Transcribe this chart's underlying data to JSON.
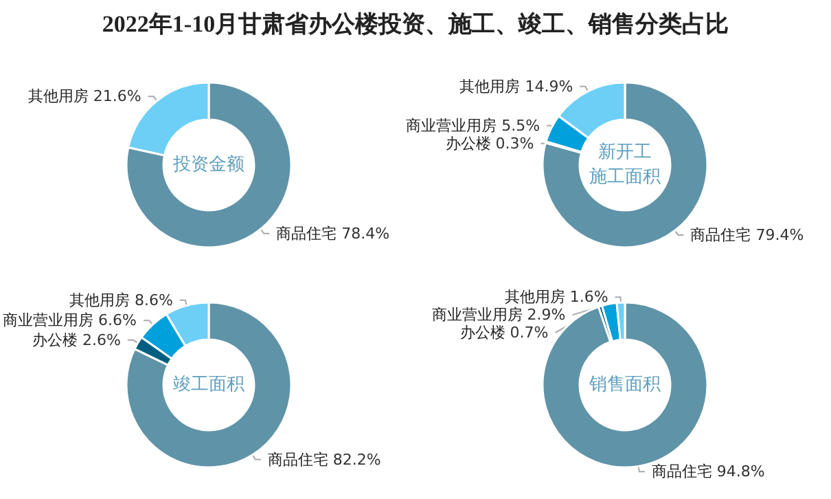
{
  "chart_data": [
    {
      "type": "donut",
      "annotations": [
        "2022年1-10月甘肃省办公楼投资、施工、竣工、销售分类占比"
      ],
      "title": "投资金额",
      "categories": [
        "商品住宅",
        "其他用房"
      ],
      "values": [
        78.4,
        21.6
      ],
      "value_labels": [
        "78.4%",
        "21.6%"
      ],
      "colors": [
        "#5f93a8",
        "#6dcff6"
      ],
      "legend": false
    },
    {
      "type": "donut",
      "title": "新开工施工面积",
      "categories": [
        "商品住宅",
        "办公楼",
        "商业营业用房",
        "其他用房"
      ],
      "values": [
        79.4,
        0.3,
        5.5,
        14.9
      ],
      "value_labels": [
        "79.4%",
        "0.3%",
        "5.5%",
        "14.9%"
      ],
      "colors": [
        "#5f93a8",
        "#005f80",
        "#00a0dc",
        "#6dcff6"
      ],
      "legend": false
    },
    {
      "type": "donut",
      "title": "竣工面积",
      "categories": [
        "商品住宅",
        "办公楼",
        "商业营业用房",
        "其他用房"
      ],
      "values": [
        82.2,
        2.6,
        6.6,
        8.6
      ],
      "value_labels": [
        "82.2%",
        "2.6%",
        "6.6%",
        "8.6%"
      ],
      "colors": [
        "#5f93a8",
        "#005f80",
        "#00a0dc",
        "#6dcff6"
      ],
      "legend": false
    },
    {
      "type": "donut",
      "title": "销售面积",
      "categories": [
        "商品住宅",
        "办公楼",
        "商业营业用房",
        "其他用房"
      ],
      "values": [
        94.8,
        0.7,
        2.9,
        1.6
      ],
      "value_labels": [
        "94.8%",
        "0.7%",
        "2.9%",
        "1.6%"
      ],
      "colors": [
        "#5f93a8",
        "#005f80",
        "#00a0dc",
        "#6dcff6"
      ],
      "legend": false
    }
  ]
}
